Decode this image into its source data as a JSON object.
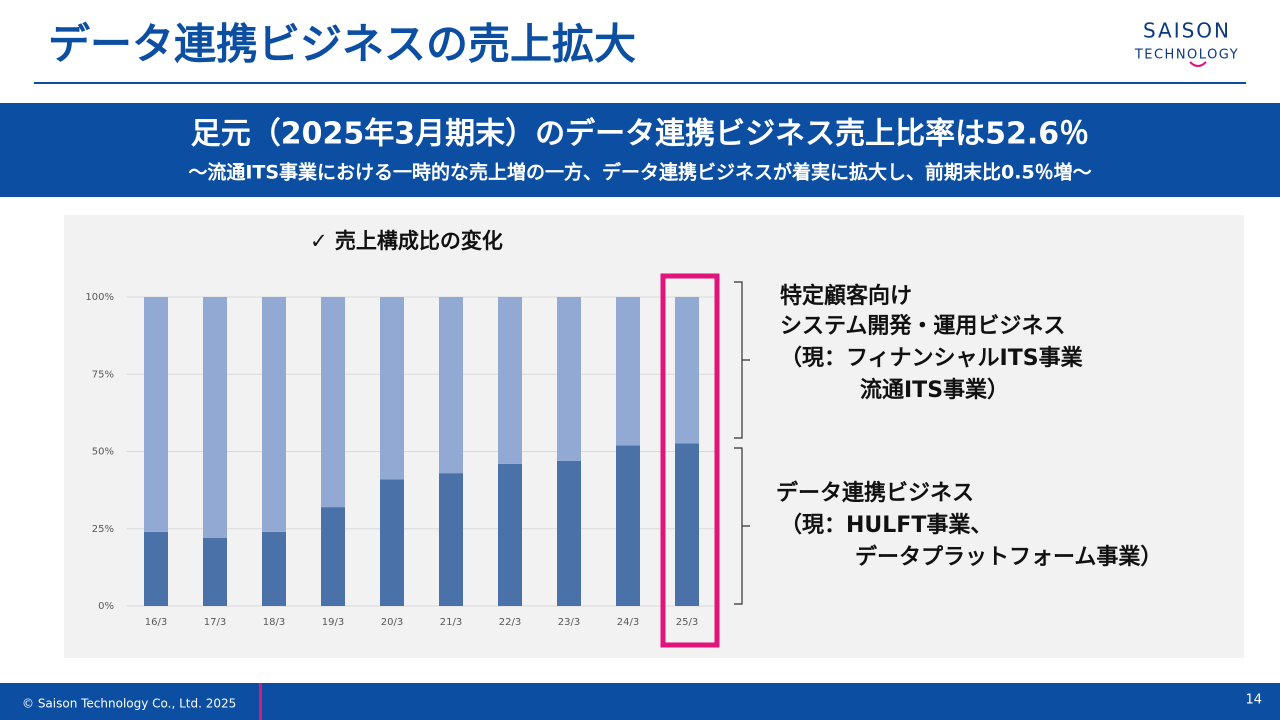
{
  "header": {
    "title": "データ連携ビジネスの売上拡大",
    "logo_top": "SAISON",
    "logo_bottom": "TECHNOLOGY"
  },
  "banner": {
    "headline": "足元（2025年3月期末）のデータ連携ビジネス売上比率は52.6％",
    "subline": "～流通ITS事業における一時的な売上増の一方、データ連携ビジネスが着実に拡大し、前期末比0.5％増～"
  },
  "chart_data": {
    "type": "bar",
    "stacked": true,
    "title": "✓ 売上構成比の変化",
    "categories": [
      "16/3",
      "17/3",
      "18/3",
      "19/3",
      "20/3",
      "21/3",
      "22/3",
      "23/3",
      "24/3",
      "25/3"
    ],
    "series": [
      {
        "color": "#4a72a8",
        "values": [
          24,
          22,
          24,
          32,
          41,
          43,
          46,
          47,
          52,
          52.6
        ]
      },
      {
        "color": "#92aad3",
        "values": [
          76,
          78,
          76,
          68,
          59,
          57,
          54,
          53,
          48,
          47.4
        ]
      }
    ],
    "ylim": [
      0,
      100
    ],
    "yticks": [
      {
        "value": 0,
        "label": "0%"
      },
      {
        "value": 25,
        "label": "25%"
      },
      {
        "value": 50,
        "label": "50%"
      },
      {
        "value": 75,
        "label": "75%"
      },
      {
        "value": 100,
        "label": "100%"
      }
    ],
    "grid": true,
    "annotations": [
      {
        "lines": [
          "特定顧客向け",
          "システム開発・運用ビジネス",
          "（現：フィナンシャルITS事業",
          "流通ITS事業）"
        ]
      },
      {
        "lines": [
          "データ連携ビジネス",
          "（現：HULFT事業、",
          "データプラットフォーム事業）"
        ]
      }
    ]
  },
  "footer": {
    "copyright": "© Saison Technology Co., Ltd. 2025",
    "page": "14"
  }
}
